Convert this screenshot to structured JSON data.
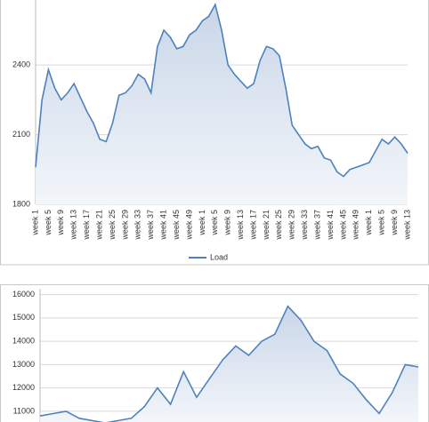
{
  "chart_data": [
    {
      "type": "line",
      "categories": [
        "week 1",
        null,
        "week 5",
        null,
        "week 9",
        null,
        "week 13",
        null,
        "week 17",
        null,
        "week 21",
        null,
        "week 25",
        null,
        "week 29",
        null,
        "week 33",
        null,
        "week 37",
        null,
        "week 41",
        null,
        "week 45",
        null,
        "week 49",
        null,
        "week 1",
        null,
        "week 5",
        null,
        "week 9",
        null,
        "week 13",
        null,
        "week 17",
        null,
        "week 21",
        null,
        "week 25",
        null,
        "week 29",
        null,
        "week 33",
        null,
        "week 37",
        null,
        "week 41",
        null,
        "week 45",
        null,
        "week 49",
        null,
        "week 1",
        null,
        "week 5",
        null,
        "week 9",
        null,
        "week 13"
      ],
      "series": [
        {
          "name": "Load",
          "color": "#4f81bd",
          "values": [
            1960,
            2250,
            2380,
            2300,
            2250,
            2280,
            2320,
            2260,
            2200,
            2150,
            2080,
            2070,
            2150,
            2270,
            2280,
            2310,
            2360,
            2340,
            2280,
            2480,
            2550,
            2520,
            2470,
            2480,
            2530,
            2550,
            2590,
            2610,
            2660,
            2550,
            2400,
            2360,
            2330,
            2300,
            2320,
            2420,
            2480,
            2470,
            2440,
            2300,
            2140,
            2100,
            2060,
            2040,
            2050,
            2000,
            1990,
            1940,
            1920,
            1950,
            1960,
            1970,
            1980,
            2030,
            2080,
            2060,
            2090,
            2060,
            2020
          ]
        }
      ],
      "ylim": [
        1800,
        2680
      ],
      "yticks": [
        1800,
        2100,
        2400
      ],
      "grid": true,
      "legend": "bottom"
    },
    {
      "type": "line",
      "series": [
        {
          "color": "#4f81bd",
          "values": [
            10800,
            10900,
            11000,
            10700,
            10600,
            10500,
            10600,
            10700,
            11200,
            12000,
            11300,
            12700,
            11600,
            12400,
            13200,
            13800,
            13400,
            14000,
            14300,
            15500,
            14900,
            14000,
            13600,
            12600,
            12200,
            11500,
            10900,
            11800,
            13000,
            12900
          ]
        }
      ],
      "ylim": [
        10540,
        16250
      ],
      "yticks": [
        11000,
        12000,
        13000,
        14000,
        15000,
        16000
      ],
      "grid": true
    }
  ]
}
